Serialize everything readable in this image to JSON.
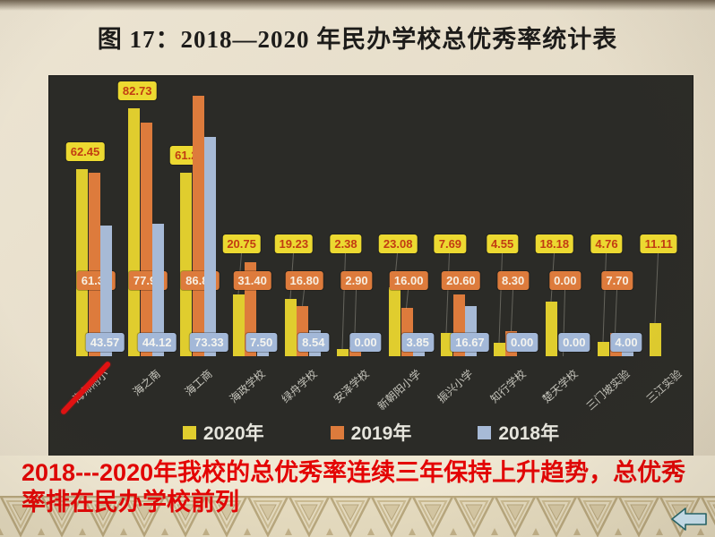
{
  "title": "图 17：2018—2020 年民办学校总优秀率统计表",
  "chart_data": {
    "type": "bar",
    "title": "图 17：2018—2020 年民办学校总优秀率统计表",
    "categories": [
      "海师附小",
      "海之南",
      "海工商",
      "海政学校",
      "绿舟学校",
      "安泽学校",
      "新朝阳小学",
      "振兴小学",
      "知行学校",
      "楚天学校",
      "三门坡实验",
      "三江实验"
    ],
    "series": [
      {
        "name": "2020年",
        "color": "#e0cd2e",
        "label_bg": "#ecd931",
        "label_text": "#c23c12",
        "values": [
          62.45,
          82.73,
          61.22,
          20.75,
          19.23,
          2.38,
          23.08,
          7.69,
          4.55,
          18.18,
          4.76,
          11.11
        ]
      },
      {
        "name": "2019年",
        "color": "#dd7b3c",
        "label_bg": "#dd7b3c",
        "label_text": "#f7efe2",
        "values": [
          61.3,
          77.9,
          86.8,
          31.4,
          16.8,
          2.9,
          16.0,
          20.6,
          8.3,
          0.0,
          7.7,
          null
        ]
      },
      {
        "name": "2018年",
        "color": "#a7bad6",
        "label_bg": "#a3b8d8",
        "label_text": "#f4f4ef",
        "values": [
          43.57,
          44.12,
          73.33,
          7.5,
          8.54,
          0.0,
          3.85,
          16.67,
          0.0,
          0.0,
          4.0,
          null
        ]
      }
    ],
    "ylim": [
      0,
      92
    ],
    "xlabel": "",
    "ylabel": "",
    "grid": false,
    "legend_position": "bottom-inside",
    "plot_background": "#2b2b27",
    "value_label_format": "0.00",
    "annotation": "red diagonal slash mark over first category label (海师附小)"
  },
  "caption": {
    "text": "2018---2020年我校的总优秀率连续三年保持上升趋势，总优秀率排在民办学校前列",
    "color": "#e40404"
  },
  "nav": {
    "back_arrow_label": "back"
  }
}
